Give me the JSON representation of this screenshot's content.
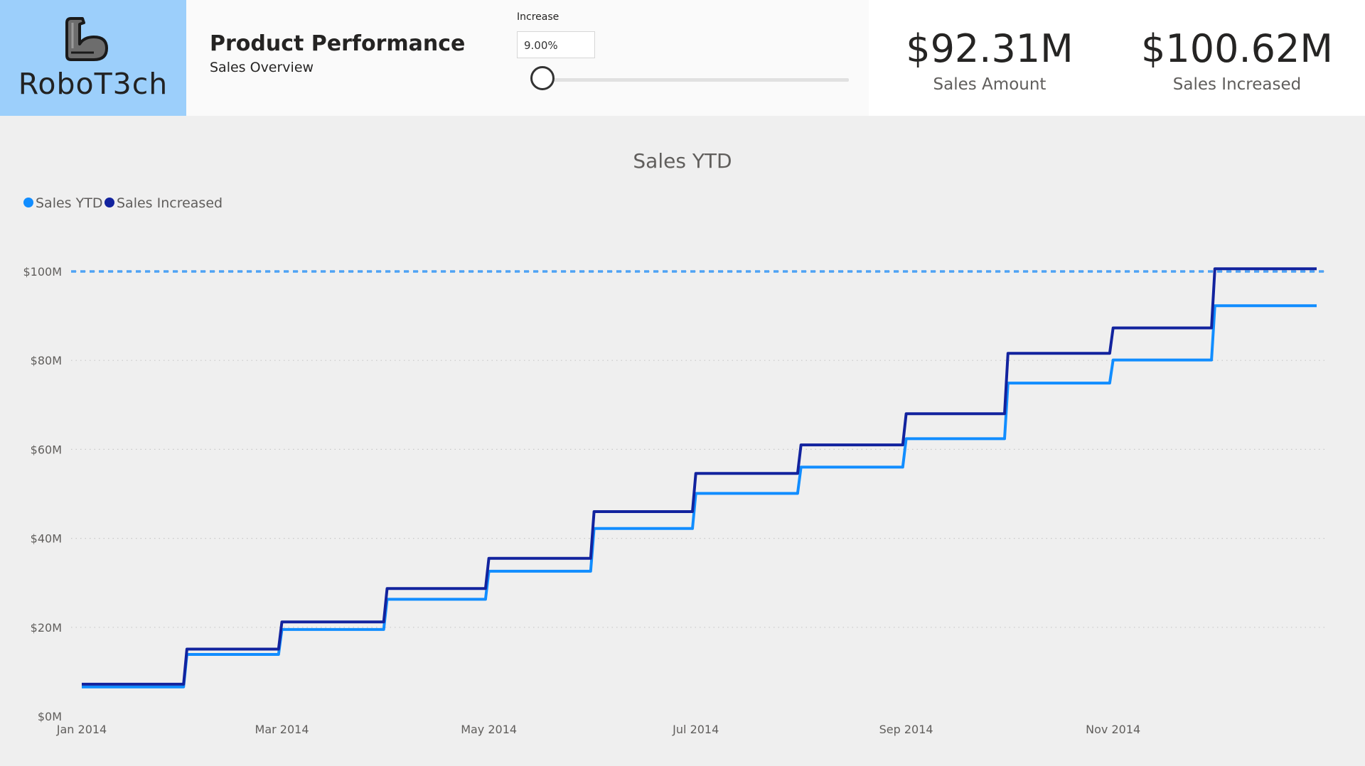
{
  "logo": {
    "text": "RoboT3ch",
    "icon": "flexed-arm-robot-icon"
  },
  "header": {
    "title": "Product Performance",
    "subtitle": "Sales Overview"
  },
  "parameter": {
    "label": "Increase",
    "value": "9.00%",
    "slider_fraction": 0.0
  },
  "kpis": [
    {
      "value": "$92.31M",
      "label": "Sales Amount"
    },
    {
      "value": "$100.62M",
      "label": "Sales Increased"
    }
  ],
  "colors": {
    "logo_bg": "#9ccffb",
    "sales_ytd": "#118dff",
    "sales_increased": "#12239e",
    "reference_line": "#4ea3f5"
  },
  "chart_data": {
    "type": "line",
    "title": "Sales YTD",
    "xlabel": "",
    "ylabel": "",
    "legend_position": "top-left",
    "grid": true,
    "step": true,
    "x": [
      "2014-01-01",
      "2014-01-31",
      "2014-02-01",
      "2014-02-28",
      "2014-03-01",
      "2014-03-31",
      "2014-04-01",
      "2014-04-30",
      "2014-05-01",
      "2014-05-31",
      "2014-06-01",
      "2014-06-30",
      "2014-07-01",
      "2014-07-31",
      "2014-08-01",
      "2014-08-31",
      "2014-09-01",
      "2014-09-30",
      "2014-10-01",
      "2014-10-31",
      "2014-11-01",
      "2014-11-30",
      "2014-12-01",
      "2014-12-31"
    ],
    "series": [
      {
        "name": "Sales YTD",
        "values": [
          6.6,
          6.6,
          13.9,
          13.9,
          19.5,
          19.5,
          26.3,
          26.3,
          32.6,
          32.6,
          42.2,
          42.2,
          50.1,
          50.1,
          56.0,
          56.0,
          62.4,
          62.4,
          74.9,
          74.9,
          80.1,
          80.1,
          92.3,
          92.3
        ]
      },
      {
        "name": "Sales Increased",
        "values": [
          7.2,
          7.2,
          15.1,
          15.1,
          21.2,
          21.2,
          28.7,
          28.7,
          35.5,
          35.5,
          46.0,
          46.0,
          54.6,
          54.6,
          61.0,
          61.0,
          68.0,
          68.0,
          81.6,
          81.6,
          87.3,
          87.3,
          100.6,
          100.6
        ]
      }
    ],
    "reference_line": {
      "value": 100
    },
    "ylim": [
      0,
      100
    ],
    "yticks": [
      0,
      20,
      40,
      60,
      80,
      100
    ],
    "ytick_labels": [
      "$0M",
      "$20M",
      "$40M",
      "$60M",
      "$80M",
      "$100M"
    ],
    "xticks": [
      "2014-01-01",
      "2014-03-01",
      "2014-05-01",
      "2014-07-01",
      "2014-09-01",
      "2014-11-01"
    ],
    "xtick_labels": [
      "Jan 2014",
      "Mar 2014",
      "May 2014",
      "Jul 2014",
      "Sep 2014",
      "Nov 2014"
    ],
    "xlim": [
      "2014-01-01",
      "2014-12-31"
    ]
  }
}
